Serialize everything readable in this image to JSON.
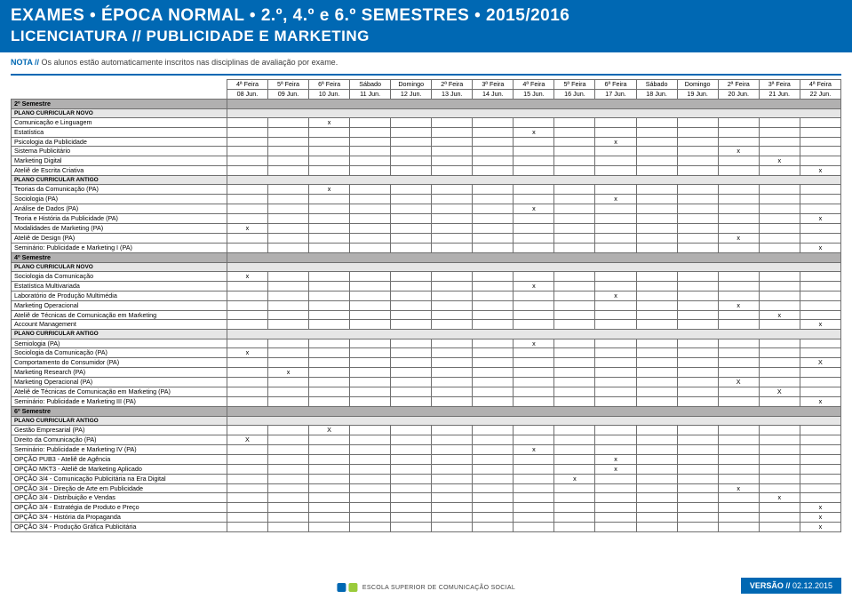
{
  "header": {
    "line1": "EXAMES • ÉPOCA NORMAL • 2.º, 4.º e 6.º SEMESTRES • 2015/2016",
    "line2": "LICENCIATURA // PUBLICIDADE E MARKETING"
  },
  "note": {
    "label": "NOTA //",
    "text": "Os alunos estão automaticamente inscritos nas disciplinas de avaliação por exame."
  },
  "columns": [
    {
      "top": "4ª Feira",
      "bottom": "08 Jun."
    },
    {
      "top": "5ª Feira",
      "bottom": "09 Jun."
    },
    {
      "top": "6ª Feira",
      "bottom": "10 Jun."
    },
    {
      "top": "Sábado",
      "bottom": "11 Jun."
    },
    {
      "top": "Domingo",
      "bottom": "12 Jun."
    },
    {
      "top": "2ª Feira",
      "bottom": "13 Jun."
    },
    {
      "top": "3ª Feira",
      "bottom": "14 Jun."
    },
    {
      "top": "4ª Feira",
      "bottom": "15 Jun."
    },
    {
      "top": "5ª Feira",
      "bottom": "16 Jun."
    },
    {
      "top": "6ª Feira",
      "bottom": "17 Jun."
    },
    {
      "top": "Sábado",
      "bottom": "18 Jun."
    },
    {
      "top": "Domingo",
      "bottom": "19 Jun."
    },
    {
      "top": "2ª Feira",
      "bottom": "20 Jun."
    },
    {
      "top": "3ª Feira",
      "bottom": "21 Jun."
    },
    {
      "top": "4ª Feira",
      "bottom": "22 Jun."
    }
  ],
  "rows": [
    {
      "type": "section",
      "label": "2º Semestre"
    },
    {
      "type": "subsection",
      "label": "PLANO CURRICULAR NOVO"
    },
    {
      "label": "Comunicação e Linguagem",
      "marks": {
        "2": "x"
      }
    },
    {
      "label": "Estatística",
      "marks": {
        "7": "x"
      }
    },
    {
      "label": "Psicologia da Publicidade",
      "marks": {
        "9": "x"
      }
    },
    {
      "label": "Sistema Publicitário",
      "marks": {
        "12": "x"
      }
    },
    {
      "label": "Marketing Digital",
      "marks": {
        "13": "x"
      }
    },
    {
      "label": "Ateliê de Escrita Criativa",
      "marks": {
        "14": "x"
      }
    },
    {
      "type": "subsection",
      "label": "PLANO CURRICULAR ANTIGO"
    },
    {
      "label": "Teorias da Comunicação (PA)",
      "marks": {
        "2": "x"
      }
    },
    {
      "label": "Sociologia (PA)",
      "marks": {
        "9": "x"
      }
    },
    {
      "label": "Análise de Dados (PA)",
      "marks": {
        "7": "x"
      }
    },
    {
      "label": "Teoria e História da Publicidade (PA)",
      "marks": {
        "14": "x"
      }
    },
    {
      "label": "Modalidades de Marketing (PA)",
      "marks": {
        "0": "x"
      }
    },
    {
      "label": "Ateliê de Design (PA)",
      "marks": {
        "12": "x"
      }
    },
    {
      "label": "Seminário: Publicidade e Marketing I (PA)",
      "marks": {
        "14": "x"
      }
    },
    {
      "type": "section",
      "label": "4º Semestre"
    },
    {
      "type": "subsection",
      "label": "PLANO CURRICULAR NOVO"
    },
    {
      "label": "Sociologia da Comunicação",
      "marks": {
        "0": "x"
      }
    },
    {
      "label": "Estatística Multivariada",
      "marks": {
        "7": "x"
      }
    },
    {
      "label": "Laboratório de Produção Multimédia",
      "marks": {
        "9": "x"
      }
    },
    {
      "label": "Marketing Operacional",
      "marks": {
        "12": "x"
      }
    },
    {
      "label": "Ateliê de Técnicas de Comunicação em Marketing",
      "marks": {
        "13": "x"
      }
    },
    {
      "label": "Account Management",
      "marks": {
        "14": "x"
      }
    },
    {
      "type": "subsection",
      "label": "PLANO CURRICULAR ANTIGO"
    },
    {
      "label": "Semiologia (PA)",
      "marks": {
        "7": "x"
      }
    },
    {
      "label": "Sociologia da Comunicação (PA)",
      "marks": {
        "0": "x"
      }
    },
    {
      "label": "Comportamento do Consumidor (PA)",
      "marks": {
        "14": "X"
      }
    },
    {
      "label": "Marketing Research (PA)",
      "marks": {
        "1": "x"
      }
    },
    {
      "label": "Marketing Operacional (PA)",
      "marks": {
        "12": "X"
      }
    },
    {
      "label": "Ateliê de Técnicas de Comunicação em Marketing (PA)",
      "marks": {
        "13": "X"
      }
    },
    {
      "label": "Seminário: Publicidade e Marketing III (PA)",
      "marks": {
        "14": "x"
      }
    },
    {
      "type": "section",
      "label": "6º Semestre"
    },
    {
      "type": "subsection",
      "label": "PLANO CURRICULAR ANTIGO"
    },
    {
      "label": "Gestão Empresarial (PA)",
      "marks": {
        "2": "X"
      }
    },
    {
      "label": "Direito da Comunicação (PA)",
      "marks": {
        "0": "X"
      }
    },
    {
      "label": "Seminário: Publicidade e Marketing IV (PA)",
      "marks": {
        "7": "x"
      }
    },
    {
      "label": "OPÇÃO PUB3 - Ateliê de Agência",
      "marks": {
        "9": "x"
      }
    },
    {
      "label": "OPÇÃO MKT3 - Ateliê de Marketing Aplicado",
      "marks": {
        "9": "x"
      }
    },
    {
      "label": "OPÇÃO 3/4 - Comunicação Publicitária na Era Digital",
      "marks": {
        "8": "x"
      }
    },
    {
      "label": "OPÇÃO 3/4 - Direção de Arte em Publicidade",
      "marks": {
        "12": "x"
      }
    },
    {
      "label": "OPÇÃO 3/4 - Distribuição e Vendas",
      "marks": {
        "13": "x"
      }
    },
    {
      "label": "OPÇÃO 3/4 - Estratégia de Produto e Preço",
      "marks": {
        "14": "x"
      }
    },
    {
      "label": "OPÇÃO 3/4 - História da Propaganda",
      "marks": {
        "14": "x"
      }
    },
    {
      "label": "OPÇÃO 3/4 - Produção Gráfica Publicitária",
      "marks": {
        "14": "x"
      }
    }
  ],
  "logo_text": "ESCOLA SUPERIOR\nDE COMUNICAÇÃO SOCIAL",
  "version": {
    "label": "VERSÃO //",
    "date": "02.12.2015"
  },
  "colors": {
    "brand": "#0068b3",
    "section_bg": "#b1b0b0",
    "subsection_bg": "#e6e6e6",
    "border": "#6f6f6f"
  }
}
